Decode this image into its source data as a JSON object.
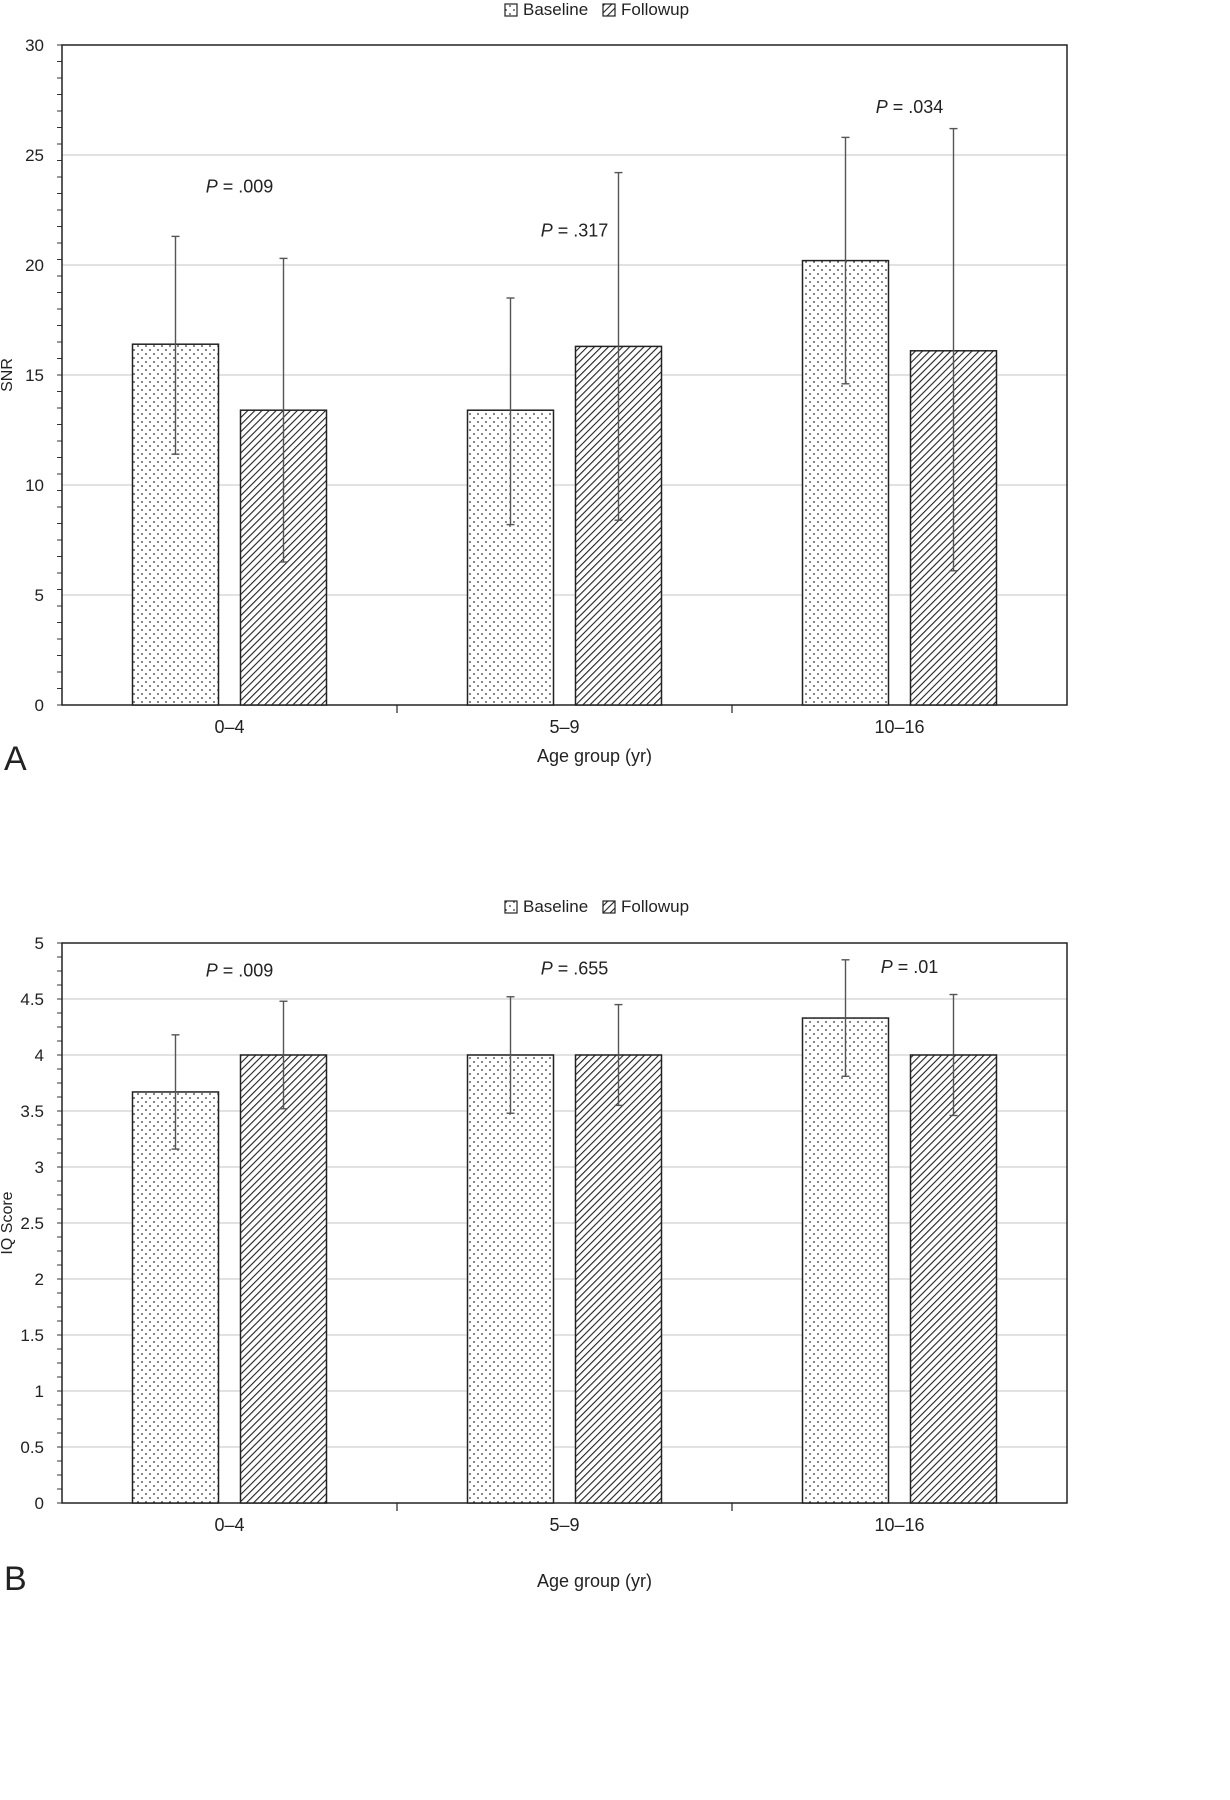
{
  "chart_data": [
    {
      "type": "bar",
      "panel_label": "A",
      "xlabel": "Age group (yr)",
      "ylabel": "SNR",
      "ylim": [
        0,
        30
      ],
      "yticks": [
        "0",
        "5",
        "10",
        "15",
        "20",
        "25",
        "30"
      ],
      "categories": [
        "0–4",
        "5–9",
        "10–16"
      ],
      "grid": true,
      "legend_position": "top-center",
      "series": [
        {
          "name": "Baseline",
          "pattern": "dots",
          "values": [
            16.4,
            13.4,
            20.2
          ],
          "error_high": [
            21.3,
            18.5,
            25.8
          ],
          "error_low": [
            11.4,
            8.2,
            14.6
          ]
        },
        {
          "name": "Followup",
          "pattern": "hatch",
          "values": [
            13.4,
            16.3,
            16.1
          ],
          "error_high": [
            20.3,
            24.2,
            26.2
          ],
          "error_low": [
            6.5,
            8.4,
            6.1
          ]
        }
      ],
      "annotations": [
        {
          "prefix": "P",
          "text": " = .009",
          "category": "0–4",
          "y": 23.3
        },
        {
          "prefix": "P",
          "text": " = .317",
          "category": "5–9",
          "y": 21.3
        },
        {
          "prefix": "P",
          "text": " = .034",
          "category": "10–16",
          "y": 26.9
        }
      ]
    },
    {
      "type": "bar",
      "panel_label": "B",
      "xlabel": "Age group (yr)",
      "ylabel": "IQ Score",
      "ylim": [
        0,
        5
      ],
      "yticks": [
        "0",
        "0.5",
        "1",
        "1.5",
        "2",
        "2.5",
        "3",
        "3.5",
        "4",
        "4.5",
        "5"
      ],
      "categories": [
        "0–4",
        "5–9",
        "10–16"
      ],
      "grid": true,
      "legend_position": "top-center",
      "series": [
        {
          "name": "Baseline",
          "pattern": "dots",
          "values": [
            3.67,
            4.0,
            4.33
          ],
          "error_high": [
            4.18,
            4.52,
            4.85
          ],
          "error_low": [
            3.16,
            3.48,
            3.81
          ]
        },
        {
          "name": "Followup",
          "pattern": "hatch",
          "values": [
            4.0,
            4.0,
            4.0
          ],
          "error_high": [
            4.48,
            4.45,
            4.54
          ],
          "error_low": [
            3.52,
            3.55,
            3.46
          ]
        }
      ],
      "annotations": [
        {
          "prefix": "P",
          "text": " = .009",
          "category": "0–4",
          "y": 4.7
        },
        {
          "prefix": "P",
          "text": " = .655",
          "category": "5–9",
          "y": 4.72
        },
        {
          "prefix": "P",
          "text": " = .01",
          "category": "10–16",
          "y": 4.73
        }
      ]
    }
  ]
}
